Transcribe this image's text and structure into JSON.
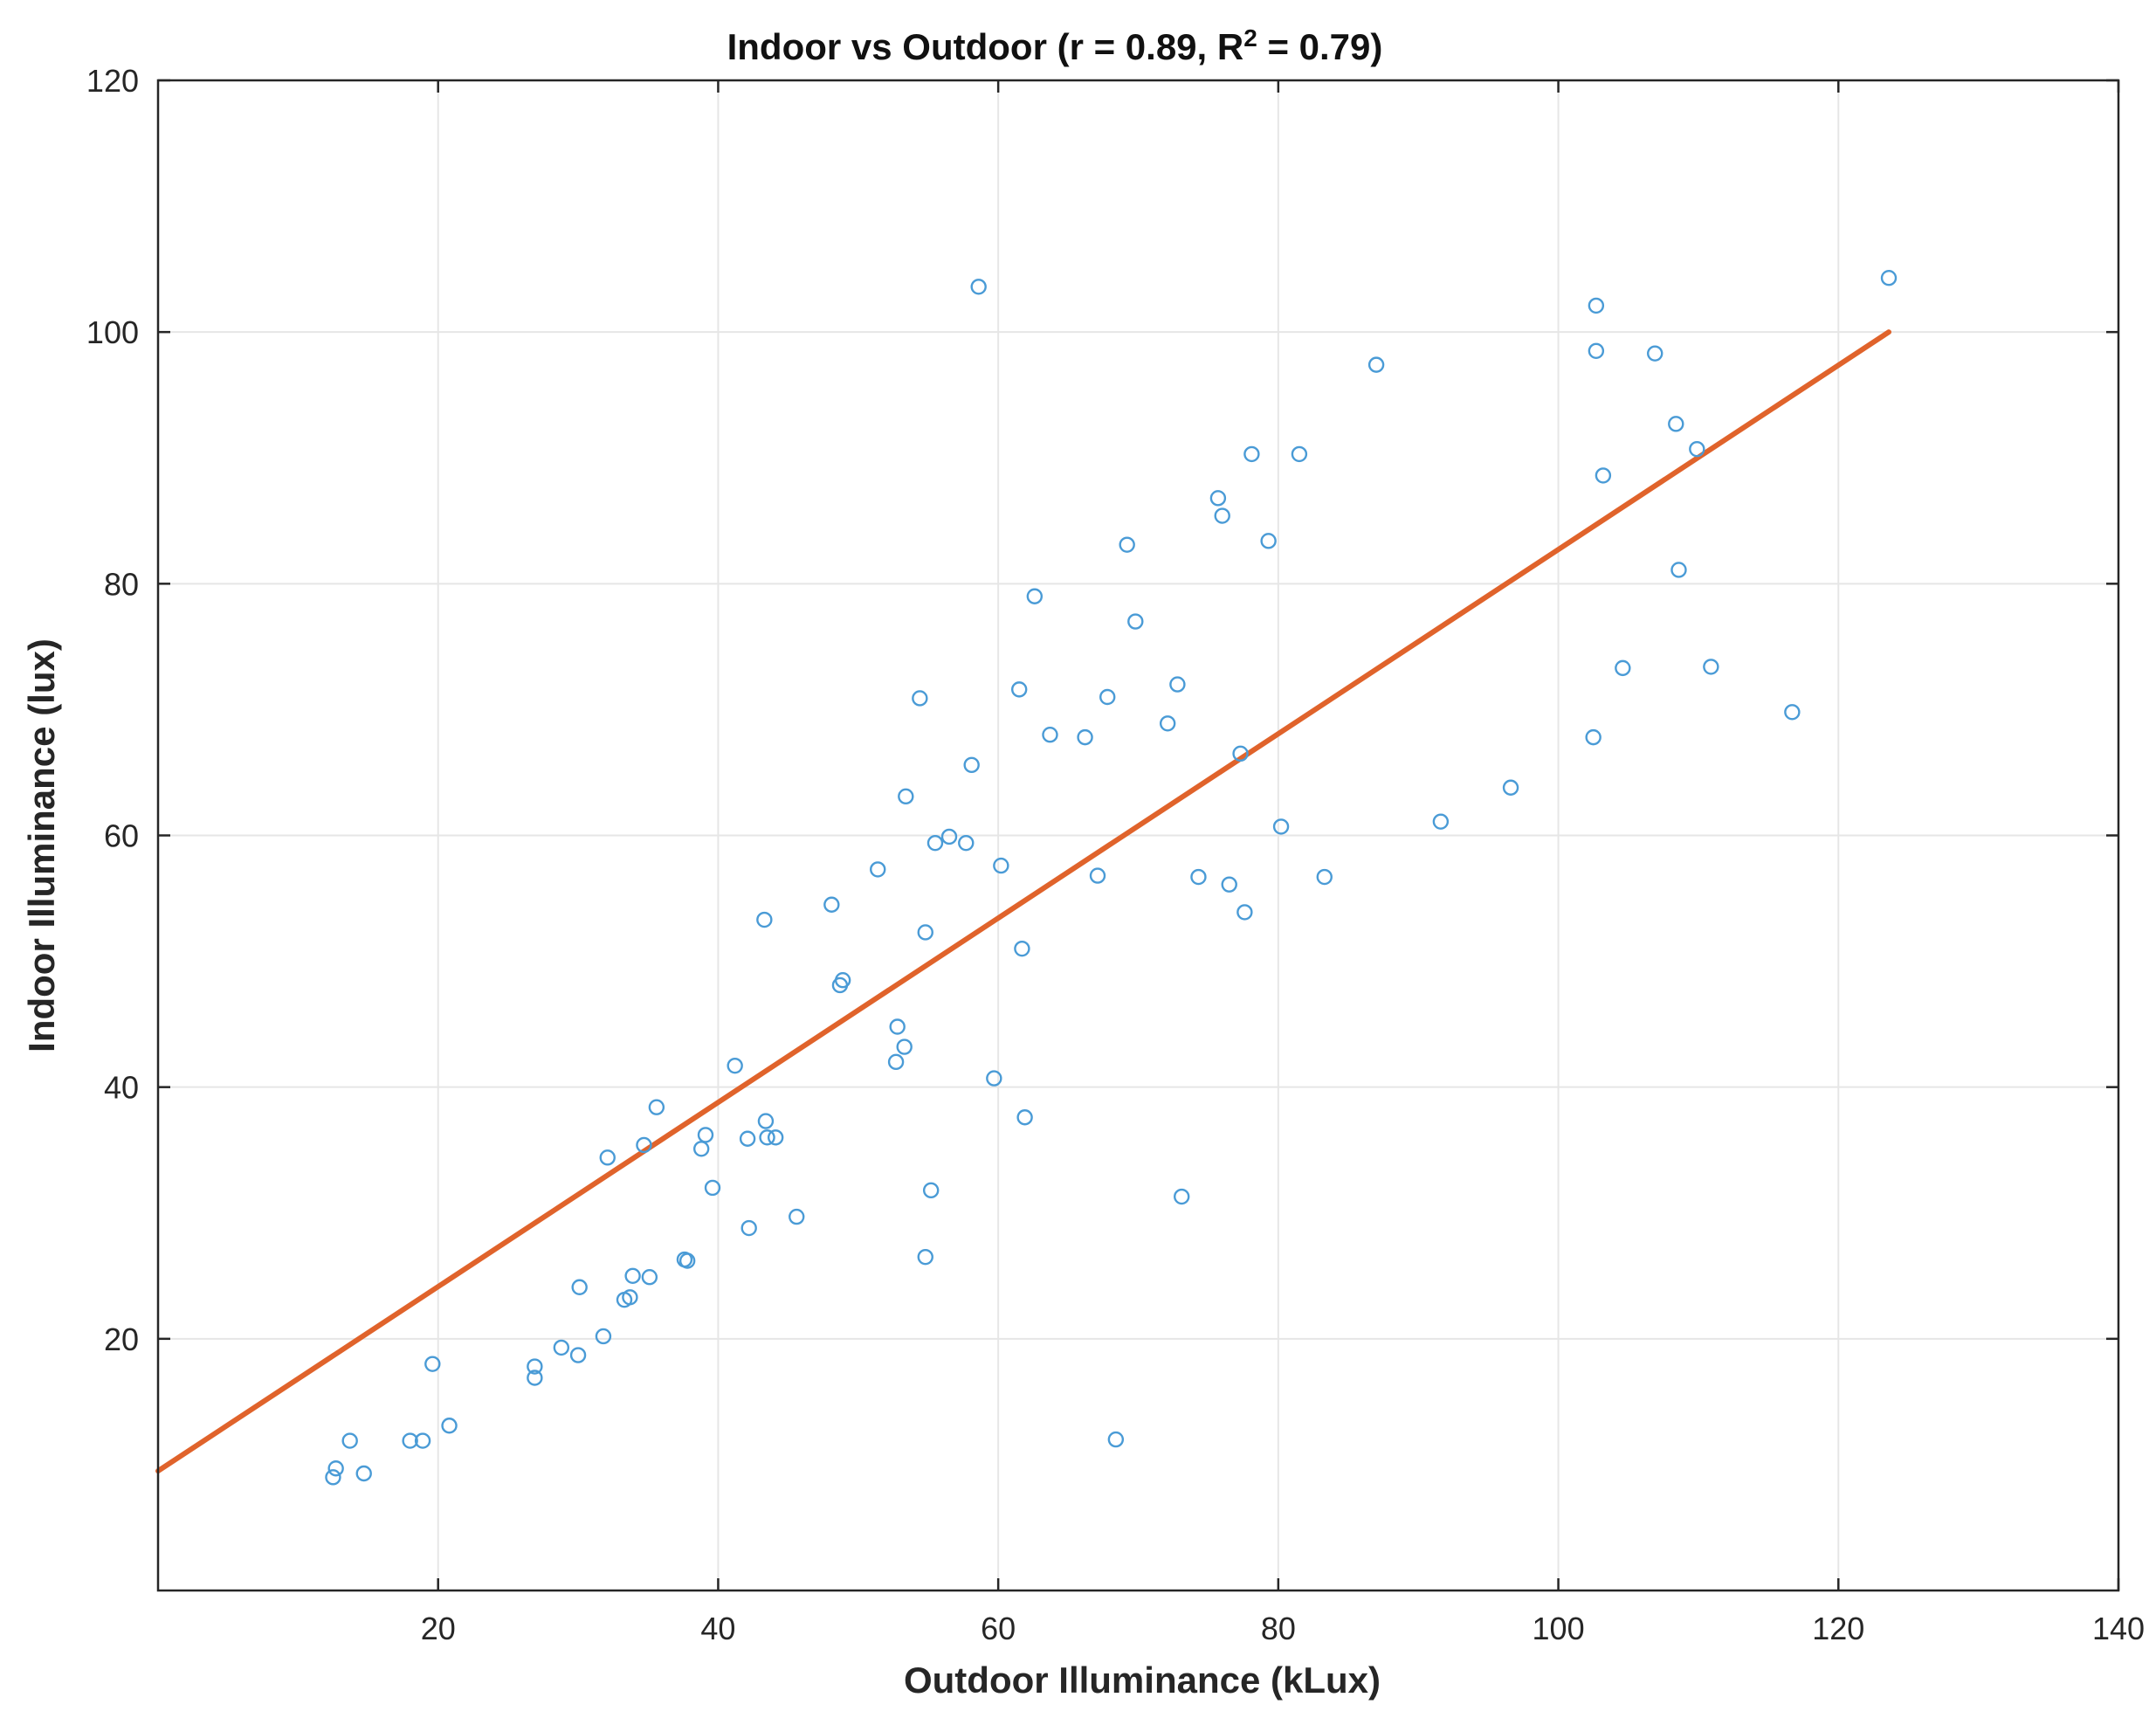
{
  "chart_data": {
    "type": "scatter",
    "title": "Indoor vs Outdoor (r = 0.89, R",
    "title_superscript": "2",
    "title_tail": " = 0.79)",
    "xlabel": "Outdoor Illuminance (kLux)",
    "ylabel": "Indoor Illuminance (lux)",
    "xlim": [
      0,
      140
    ],
    "ylim": [
      0,
      120
    ],
    "x_ticks": [
      20,
      40,
      60,
      80,
      100,
      120,
      140
    ],
    "y_ticks": [
      20,
      40,
      60,
      80,
      100,
      120
    ],
    "grid": true,
    "legend": "none",
    "colors": {
      "points": "#4a9bd6",
      "fit_line": "#e0632b",
      "grid": "#e6e6e6",
      "axes": "#262626"
    },
    "series": [
      {
        "kind": "points",
        "marker": "circle",
        "x": [
          12.5,
          12.7,
          13.7,
          14.7,
          18.0,
          18.9,
          19.6,
          20.8,
          26.9,
          26.9,
          28.8,
          30.0,
          30.1,
          31.8,
          32.1,
          33.3,
          33.7,
          33.9,
          34.7,
          35.1,
          35.6,
          37.6,
          37.8,
          38.8,
          39.1,
          39.6,
          41.2,
          42.1,
          42.2,
          43.3,
          43.4,
          43.5,
          44.1,
          45.6,
          48.1,
          48.7,
          48.9,
          51.4,
          52.7,
          52.8,
          53.3,
          53.4,
          54.4,
          54.8,
          54.8,
          55.2,
          55.5,
          56.5,
          57.7,
          58.1,
          58.6,
          59.7,
          60.2,
          61.5,
          61.7,
          61.9,
          62.6,
          63.7,
          66.2,
          67.1,
          67.8,
          68.4,
          69.2,
          69.8,
          72.1,
          72.8,
          73.1,
          74.3,
          75.7,
          76.0,
          76.5,
          77.3,
          77.6,
          78.1,
          79.3,
          80.2,
          81.5,
          83.3,
          87.0,
          91.6,
          96.6,
          102.5,
          102.7,
          102.7,
          103.2,
          104.6,
          106.9,
          108.4,
          108.6,
          109.9,
          110.9,
          116.7,
          123.6
        ],
        "y": [
          9.0,
          9.7,
          11.9,
          9.3,
          11.9,
          11.9,
          18.0,
          13.1,
          16.9,
          17.8,
          19.3,
          18.7,
          24.1,
          20.2,
          34.4,
          23.1,
          23.3,
          25.0,
          35.4,
          24.9,
          38.4,
          26.3,
          26.2,
          35.1,
          36.2,
          32.0,
          41.7,
          35.9,
          28.8,
          53.3,
          37.3,
          36.0,
          36.0,
          29.7,
          54.5,
          48.1,
          48.5,
          57.3,
          42.0,
          44.8,
          43.2,
          63.1,
          70.9,
          26.5,
          52.3,
          31.8,
          59.4,
          59.9,
          59.4,
          65.6,
          103.6,
          40.7,
          57.6,
          71.6,
          51.0,
          37.6,
          79.0,
          68.0,
          67.8,
          56.8,
          71.0,
          12.0,
          83.1,
          77.0,
          68.9,
          72.0,
          31.3,
          56.7,
          86.8,
          85.4,
          56.1,
          66.5,
          53.9,
          90.3,
          83.4,
          60.7,
          90.3,
          56.7,
          97.4,
          61.1,
          63.8,
          67.8,
          102.1,
          98.5,
          88.6,
          73.3,
          98.3,
          92.7,
          81.1,
          90.7,
          73.4,
          69.8,
          104.3
        ]
      },
      {
        "kind": "fit_line",
        "x": [
          0,
          123.6
        ],
        "y": [
          9.5,
          100.0
        ]
      }
    ]
  }
}
